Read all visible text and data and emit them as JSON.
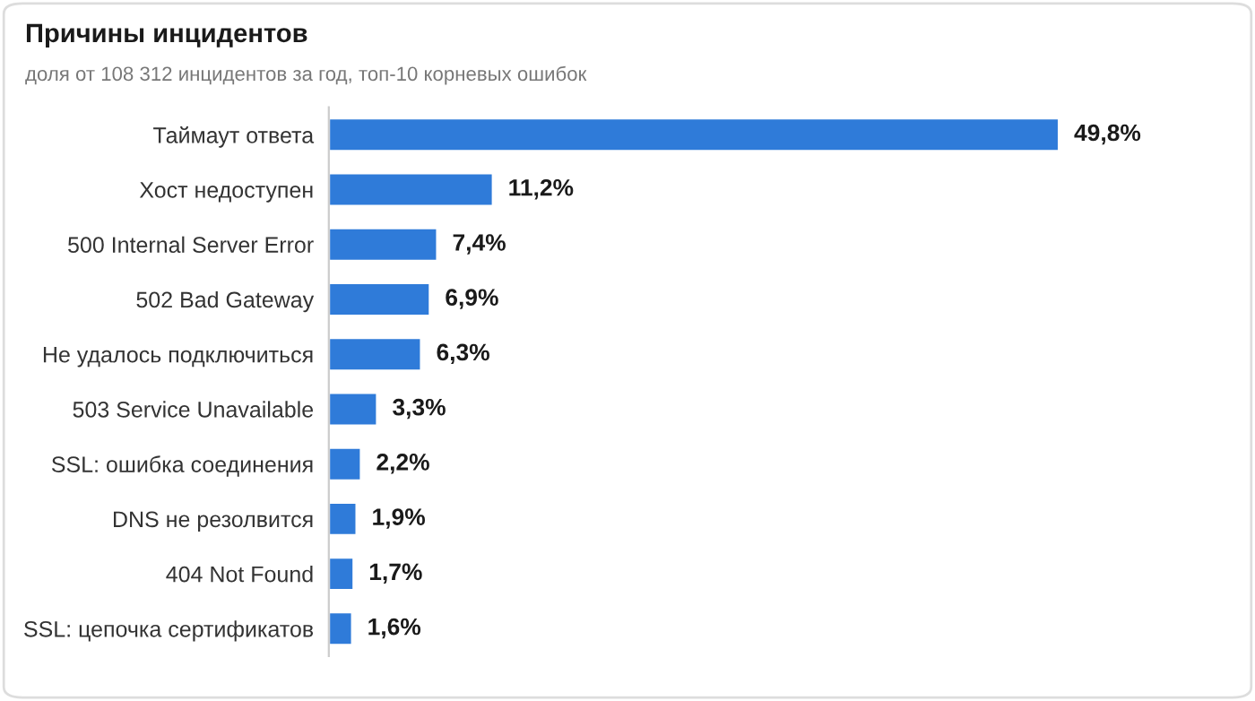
{
  "chart_data": {
    "type": "bar",
    "orientation": "horizontal",
    "title": "Причины инцидентов",
    "subtitle": "доля от 108 312 инцидентов за год, топ-10 корневых ошибок",
    "categories": [
      "Таймаут ответа",
      "Хост недоступен",
      "500 Internal Server Error",
      "502 Bad Gateway",
      "Не удалось подключиться",
      "503 Service Unavailable",
      "SSL: ошибка соединения",
      "DNS не резолвится",
      "404 Not Found",
      "SSL: цепочка сертификатов"
    ],
    "values": [
      49.8,
      11.2,
      7.4,
      6.9,
      6.3,
      3.3,
      2.2,
      1.9,
      1.7,
      1.6
    ],
    "value_labels": [
      "49,8%",
      "11,2%",
      "7,4%",
      "6,9%",
      "6,3%",
      "3,3%",
      "2,2%",
      "1,9%",
      "1,7%",
      "1,6%"
    ],
    "color": "#2f7bd9",
    "grid": false,
    "legend": false,
    "tick_labels": "y"
  }
}
